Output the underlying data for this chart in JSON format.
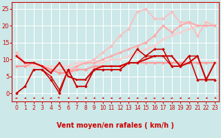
{
  "background_color": "#cce8e8",
  "grid_color": "#ffffff",
  "xlabel": "Vent moyen/en rafales ( km/h )",
  "xlabel_color": "#cc0000",
  "xlabel_fontsize": 7,
  "xticks": [
    0,
    1,
    2,
    3,
    4,
    5,
    6,
    7,
    8,
    9,
    10,
    11,
    12,
    13,
    14,
    15,
    16,
    17,
    18,
    19,
    20,
    21,
    22,
    23
  ],
  "yticks": [
    0,
    5,
    10,
    15,
    20,
    25
  ],
  "ylim": [
    -2.5,
    27
  ],
  "xlim": [
    -0.5,
    23.5
  ],
  "lines": [
    {
      "x": [
        0,
        1,
        2,
        3,
        4,
        5,
        6,
        7,
        8,
        9,
        10,
        11,
        12,
        13,
        14,
        15,
        16,
        17,
        18,
        19,
        20,
        21,
        22,
        23
      ],
      "y": [
        8,
        8,
        8,
        8,
        8,
        8,
        8,
        9,
        9,
        9,
        9,
        10,
        10,
        11,
        12,
        13,
        14,
        16,
        17,
        18,
        19,
        20,
        20,
        20
      ],
      "color": "#ffcccc",
      "lw": 1.5,
      "marker": "o",
      "ms": 2.0
    },
    {
      "x": [
        0,
        1,
        2,
        3,
        4,
        5,
        6,
        7,
        8,
        9,
        10,
        11,
        12,
        13,
        14,
        15,
        16,
        17,
        18,
        19,
        20,
        21,
        22,
        23
      ],
      "y": [
        12,
        9,
        9,
        8,
        7,
        7,
        7,
        8,
        9,
        10,
        12,
        14,
        17,
        19,
        24,
        25,
        22,
        22,
        24,
        21,
        21,
        17,
        21,
        20
      ],
      "color": "#ffbbbb",
      "lw": 1.2,
      "marker": "o",
      "ms": 2.5
    },
    {
      "x": [
        0,
        1,
        2,
        3,
        4,
        5,
        6,
        7,
        8,
        9,
        10,
        11,
        12,
        13,
        14,
        15,
        16,
        17,
        18,
        19,
        20,
        21,
        22,
        23
      ],
      "y": [
        11,
        9,
        9,
        8,
        7,
        6,
        6,
        8,
        9,
        9,
        10,
        11,
        12,
        13,
        14,
        15,
        17,
        20,
        18,
        20,
        21,
        20,
        20,
        20
      ],
      "color": "#ffaaaa",
      "lw": 1.5,
      "marker": "o",
      "ms": 2.5
    },
    {
      "x": [
        0,
        1,
        2,
        3,
        4,
        5,
        6,
        7,
        8,
        9,
        10,
        11,
        12,
        13,
        14,
        15,
        16,
        17,
        18,
        19,
        20,
        21,
        22,
        23
      ],
      "y": [
        8,
        8,
        9,
        8,
        7,
        6,
        6,
        7,
        7,
        8,
        8,
        8,
        8,
        9,
        9,
        9,
        9,
        9,
        9,
        9,
        9,
        9,
        9,
        9
      ],
      "color": "#ff9999",
      "lw": 1.5,
      "marker": "o",
      "ms": 2.5
    },
    {
      "x": [
        0,
        1,
        2,
        3,
        4,
        5,
        6,
        7,
        8,
        9,
        10,
        11,
        12,
        13,
        14,
        15,
        16,
        17,
        18,
        19,
        20,
        21,
        22,
        23
      ],
      "y": [
        0,
        2,
        7,
        7,
        4,
        0,
        7,
        2,
        2,
        7,
        7,
        7,
        7,
        9,
        13,
        11,
        13,
        13,
        8,
        8,
        11,
        4,
        4,
        4
      ],
      "color": "#cc0000",
      "lw": 1.2,
      "marker": "D",
      "ms": 2.0
    },
    {
      "x": [
        0,
        1,
        2,
        3,
        4,
        5,
        6,
        7,
        8,
        9,
        10,
        11,
        12,
        13,
        14,
        15,
        16,
        17,
        18,
        19,
        20,
        21,
        22,
        23
      ],
      "y": [
        11,
        9,
        9,
        8,
        6,
        9,
        5,
        4,
        4,
        7,
        8,
        8,
        8,
        9,
        9,
        10,
        11,
        11,
        11,
        8,
        9,
        11,
        4,
        9
      ],
      "color": "#cc0000",
      "lw": 1.5,
      "marker": "s",
      "ms": 2.0
    },
    {
      "x": [
        0,
        1,
        2,
        3,
        4,
        5,
        6,
        7,
        8,
        9,
        10,
        11,
        12,
        13,
        14,
        15,
        16,
        17,
        18,
        19,
        20,
        21,
        22,
        23
      ],
      "y": [
        0,
        2,
        7,
        7,
        5,
        1,
        7,
        2,
        2,
        7,
        7,
        7,
        7,
        9,
        9,
        11,
        11,
        11,
        8,
        8,
        11,
        11,
        4,
        4
      ],
      "color": "#cc0000",
      "lw": 1.0,
      "marker": "^",
      "ms": 2.0
    }
  ],
  "arrow_color": "#cc0000",
  "tick_color": "#cc0000",
  "tick_fontsize": 5.5,
  "ytick_fontsize": 6,
  "arrow_angles_deg": [
    225,
    215,
    205,
    210,
    220,
    170,
    205,
    200,
    200,
    210,
    210,
    215,
    220,
    215,
    215,
    220,
    225,
    220,
    220,
    218,
    220,
    215,
    205,
    200
  ]
}
